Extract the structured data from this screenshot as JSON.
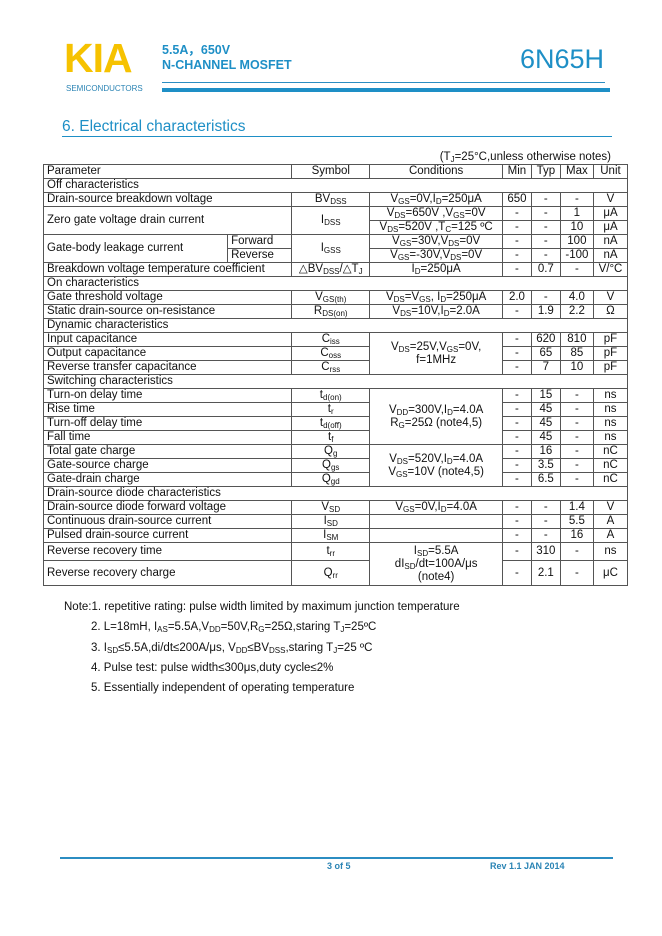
{
  "header": {
    "logo": "KIA",
    "logo_sub": "SEMICONDUCTORS",
    "spec_line1": "5.5A，650V",
    "spec_line2": "N-CHANNEL MOSFET",
    "part_number": "6N65H",
    "brand_color": "#f6c200",
    "accent_color": "#1e8fc6"
  },
  "section": {
    "number": "6.",
    "title": "Electrical characteristics"
  },
  "condition_note": "(T_{J}=25°C,unless otherwise notes)",
  "table": {
    "headers": {
      "param": "Parameter",
      "sym": "Symbol",
      "cond": "Conditions",
      "min": "Min",
      "typ": "Typ",
      "max": "Max",
      "unit": "Unit"
    },
    "rows": [
      {
        "section": "Off characteristics"
      },
      {
        "param": "Drain-source breakdown voltage",
        "sym": "BV_{DSS}",
        "cond": "V_{GS}=0V,I_{D}=250μA",
        "min": "650",
        "typ": "-",
        "max": "-",
        "unit": "V"
      },
      {
        "param": "Zero gate voltage drain current",
        "param_rows": 2,
        "sym": "I_{DSS}",
        "sym_rows": 2,
        "cond": "V_{DS}=650V ,V_{GS}=0V",
        "min": "-",
        "typ": "-",
        "max": "1",
        "unit": "μA"
      },
      {
        "cond": "V_{DS}=520V ,T_{C}=125 ºC",
        "min": "-",
        "typ": "-",
        "max": "10",
        "unit": "μA"
      },
      {
        "param": "Gate-body leakage current",
        "param_rows": 2,
        "sub": "Forward",
        "sym": "I_{GSS}",
        "sym_rows": 2,
        "cond": "V_{GS}=30V,V_{DS}=0V",
        "min": "-",
        "typ": "-",
        "max": "100",
        "unit": "nA"
      },
      {
        "sub": "Reverse",
        "cond": "V_{GS}=-30V,V_{DS}=0V",
        "min": "-",
        "typ": "-",
        "max": "-100",
        "unit": "nA"
      },
      {
        "param": "Breakdown voltage temperature coefficient",
        "sym": "△BV_{DSS}/△T_{J}",
        "cond": "I_{D}=250μA",
        "min": "-",
        "typ": "0.7",
        "max": "-",
        "unit": "V/°C"
      },
      {
        "section": "On characteristics"
      },
      {
        "param": "Gate threshold voltage",
        "sym": "V_{GS(th)}",
        "cond": "V_{DS}=V_{GS}, I_{D}=250μA",
        "min": "2.0",
        "typ": "-",
        "max": "4.0",
        "unit": "V"
      },
      {
        "param": "Static drain-source on-resistance",
        "sym": "R_{DS(on)}",
        "cond": "V_{DS}=10V,I_{D}=2.0A",
        "min": "-",
        "typ": "1.9",
        "max": "2.2",
        "unit": "Ω"
      },
      {
        "section": "Dynamic characteristics"
      },
      {
        "param": "Input capacitance",
        "sym": "C_{iss}",
        "cond": "V_{DS}=25V,V_{GS}=0V,\nf=1MHz",
        "cond_rows": 3,
        "min": "-",
        "typ": "620",
        "max": "810",
        "unit": "pF"
      },
      {
        "param": "Output capacitance",
        "sym": "C_{oss}",
        "min": "-",
        "typ": "65",
        "max": "85",
        "unit": "pF"
      },
      {
        "param": "Reverse transfer capacitance",
        "sym": "C_{rss}",
        "min": "-",
        "typ": "7",
        "max": "10",
        "unit": "pF"
      },
      {
        "section": "Switching characteristics"
      },
      {
        "param": "Turn-on delay time",
        "sym": "t_{d(on)}",
        "cond": "V_{DD}=300V,I_{D}=4.0A\nR_{G}=25Ω (note4,5)",
        "cond_rows": 4,
        "min": "-",
        "typ": "15",
        "max": "-",
        "unit": "ns"
      },
      {
        "param": "Rise time",
        "sym": "t_{r}",
        "min": "-",
        "typ": "45",
        "max": "-",
        "unit": "ns"
      },
      {
        "param": "Turn-off delay time",
        "sym": "t_{d(off)}",
        "min": "-",
        "typ": "45",
        "max": "-",
        "unit": "ns"
      },
      {
        "param": "Fall time",
        "sym": "t_{f}",
        "min": "-",
        "typ": "45",
        "max": "-",
        "unit": "ns"
      },
      {
        "param": "Total gate charge",
        "sym": "Q_{g}",
        "cond": "V_{DS}=520V,I_{D}=4.0A\nV_{GS}=10V (note4,5)",
        "cond_rows": 3,
        "min": "-",
        "typ": "16",
        "max": "-",
        "unit": "nC"
      },
      {
        "param": "Gate-source charge",
        "sym": "Q_{gs}",
        "min": "-",
        "typ": "3.5",
        "max": "-",
        "unit": "nC"
      },
      {
        "param": "Gate-drain charge",
        "sym": "Q_{gd}",
        "min": "-",
        "typ": "6.5",
        "max": "-",
        "unit": "nC"
      },
      {
        "section": "Drain-source diode characteristics"
      },
      {
        "param": "Drain-source diode forward voltage",
        "sym": "V_{SD}",
        "cond": "V_{GS}=0V,I_{D}=4.0A",
        "min": "-",
        "typ": "-",
        "max": "1.4",
        "unit": "V"
      },
      {
        "param": "Continuous drain-source current",
        "sym": "I_{SD}",
        "cond": "",
        "min": "-",
        "typ": "-",
        "max": "5.5",
        "unit": "A"
      },
      {
        "param": "Pulsed drain-source current",
        "sym": "I_{SM}",
        "cond": "",
        "min": "-",
        "typ": "-",
        "max": "16",
        "unit": "A"
      },
      {
        "param": "Reverse recovery time",
        "sym": "t_{rr}",
        "cond": "I_{SD}=5.5A\ndI_{SD}/dt=100A/μs\n(note4)",
        "cond_rows": 2,
        "min": "-",
        "typ": "310",
        "max": "-",
        "unit": "ns",
        "cls": "tall"
      },
      {
        "param": "Reverse recovery charge",
        "sym": "Q_{rr}",
        "min": "-",
        "typ": "2.1",
        "max": "-",
        "unit": "μC",
        "cls": "tall2"
      }
    ]
  },
  "notes": [
    "Note:1. repetitive rating: pulse width limited by maximum junction temperature",
    "2. L=18mH, I_{AS}=5.5A,V_{DD}=50V,R_{G}=25Ω,staring T_{J}=25ºC",
    "3. I_{SD}≤5.5A,di/dt≤200A/μs, V_{DD}≤BV_{DSS},staring T_{J}=25 ºC",
    "4. Pulse test: pulse width≤300μs,duty cycle≤2%",
    "5. Essentially independent of operating temperature"
  ],
  "footer": {
    "page": "3 of 5",
    "revision": "Rev 1.1 JAN 2014"
  }
}
